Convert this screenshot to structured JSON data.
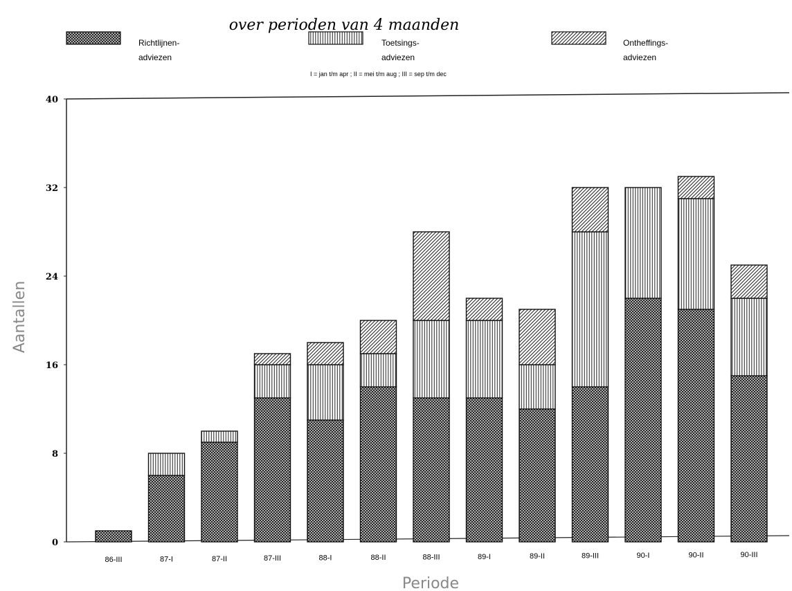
{
  "chart_data": {
    "type": "bar",
    "stacked": true,
    "subtitle": "over perioden van 4 maanden",
    "xlabel": "Periode",
    "ylabel": "Aantallen",
    "note": "I = jan t/m apr ; II = mei t/m aug ; III = sep t/m dec",
    "ylim": [
      0,
      40
    ],
    "yticks": [
      "0",
      "8",
      "16",
      "24",
      "32",
      "40"
    ],
    "grid": false,
    "legend_position": "top",
    "categories": [
      "86-III",
      "87-I",
      "87-II",
      "87-III",
      "88-I",
      "88-II",
      "88-III",
      "89-I",
      "89-II",
      "89-III",
      "90-I",
      "90-II",
      "90-III"
    ],
    "series": [
      {
        "name_line1": "Richtlijnen-",
        "name_line2": "adviezen",
        "pattern": "crosshatch",
        "values": [
          1,
          6,
          9,
          13,
          11,
          14,
          13,
          13,
          12,
          14,
          22,
          21,
          15
        ]
      },
      {
        "name_line1": "Toetsings-",
        "name_line2": "adviezen",
        "pattern": "vertical",
        "values": [
          0,
          2,
          1,
          3,
          5,
          3,
          7,
          7,
          4,
          14,
          10,
          10,
          7
        ]
      },
      {
        "name_line1": "Ontheffings-",
        "name_line2": "adviezen",
        "pattern": "diagonal",
        "values": [
          0,
          0,
          0,
          1,
          2,
          3,
          8,
          2,
          5,
          4,
          0,
          2,
          3
        ]
      }
    ]
  }
}
